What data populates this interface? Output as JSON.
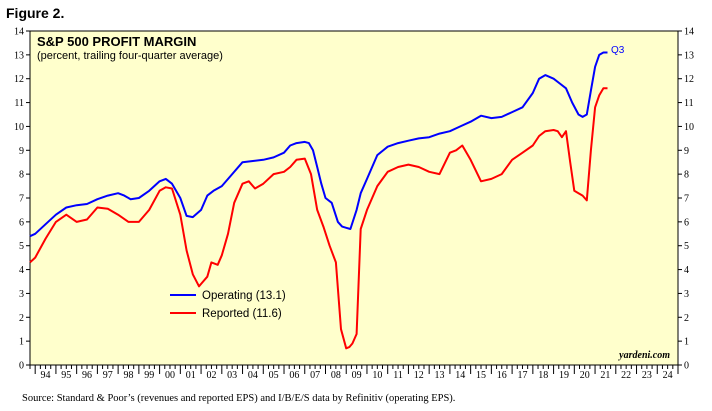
{
  "figure_label": "Figure 2.",
  "source_note": "Source: Standard & Poor’s (revenues and reported EPS) and I/B/E/S data by Refinitiv (operating EPS).",
  "chart_data": {
    "type": "line",
    "title": "S&P 500 PROFIT MARGIN",
    "subtitle": "(percent, trailing four-quarter average)",
    "credit": "yardeni.com",
    "annotation": "Q3",
    "background": "#ffffcc",
    "ylim": [
      0,
      14
    ],
    "yticks": [
      "0",
      "1",
      "2",
      "3",
      "4",
      "5",
      "6",
      "7",
      "8",
      "9",
      "10",
      "11",
      "12",
      "13",
      "14"
    ],
    "xlim": [
      1993.75,
      2025.0
    ],
    "xticks": [
      "94",
      "95",
      "96",
      "97",
      "98",
      "99",
      "00",
      "01",
      "02",
      "03",
      "04",
      "05",
      "06",
      "07",
      "08",
      "09",
      "10",
      "11",
      "12",
      "13",
      "14",
      "15",
      "16",
      "17",
      "18",
      "19",
      "20",
      "21",
      "22",
      "23",
      "24"
    ],
    "legend_position": "center-left",
    "series": [
      {
        "name": "Operating (13.1)",
        "color": "#0000ff",
        "x": [
          1993.75,
          1994.0,
          1994.5,
          1995.0,
          1995.5,
          1996.0,
          1996.5,
          1997.0,
          1997.5,
          1998.0,
          1998.3,
          1998.6,
          1999.0,
          1999.5,
          2000.0,
          2000.3,
          2000.6,
          2001.0,
          2001.3,
          2001.6,
          2002.0,
          2002.3,
          2002.6,
          2003.0,
          2003.5,
          2004.0,
          2004.5,
          2005.0,
          2005.5,
          2006.0,
          2006.3,
          2006.6,
          2007.0,
          2007.2,
          2007.4,
          2007.6,
          2007.8,
          2008.0,
          2008.3,
          2008.6,
          2008.8,
          2009.0,
          2009.2,
          2009.5,
          2009.7,
          2010.0,
          2010.5,
          2011.0,
          2011.5,
          2012.0,
          2012.5,
          2013.0,
          2013.5,
          2014.0,
          2014.5,
          2015.0,
          2015.5,
          2016.0,
          2016.5,
          2017.0,
          2017.5,
          2018.0,
          2018.3,
          2018.6,
          2019.0,
          2019.3,
          2019.6,
          2019.9,
          2020.2,
          2020.4,
          2020.6,
          2020.8,
          2021.0,
          2021.2,
          2021.4,
          2021.6
        ],
        "values": [
          5.4,
          5.5,
          5.9,
          6.3,
          6.6,
          6.7,
          6.75,
          6.95,
          7.1,
          7.2,
          7.1,
          6.95,
          7.0,
          7.3,
          7.7,
          7.8,
          7.6,
          7.0,
          6.25,
          6.2,
          6.5,
          7.1,
          7.3,
          7.5,
          8.0,
          8.5,
          8.55,
          8.6,
          8.7,
          8.9,
          9.2,
          9.3,
          9.35,
          9.3,
          9.0,
          8.3,
          7.6,
          7.0,
          6.8,
          6.0,
          5.8,
          5.75,
          5.7,
          6.5,
          7.2,
          7.8,
          8.8,
          9.15,
          9.3,
          9.4,
          9.5,
          9.55,
          9.7,
          9.8,
          10.0,
          10.2,
          10.45,
          10.35,
          10.4,
          10.6,
          10.8,
          11.4,
          12.0,
          12.15,
          12.0,
          11.8,
          11.6,
          11.0,
          10.5,
          10.4,
          10.5,
          11.5,
          12.5,
          13.0,
          13.1,
          13.1
        ]
      },
      {
        "name": "Reported (11.6)",
        "color": "#ff0000",
        "x": [
          1993.75,
          1994.0,
          1994.5,
          1995.0,
          1995.5,
          1996.0,
          1996.5,
          1997.0,
          1997.5,
          1998.0,
          1998.5,
          1999.0,
          1999.5,
          2000.0,
          2000.3,
          2000.6,
          2001.0,
          2001.3,
          2001.6,
          2001.9,
          2002.0,
          2002.3,
          2002.5,
          2002.8,
          2003.0,
          2003.3,
          2003.6,
          2004.0,
          2004.3,
          2004.6,
          2005.0,
          2005.5,
          2006.0,
          2006.3,
          2006.6,
          2007.0,
          2007.3,
          2007.6,
          2007.9,
          2008.2,
          2008.5,
          2008.75,
          2009.0,
          2009.15,
          2009.3,
          2009.5,
          2009.7,
          2010.0,
          2010.5,
          2011.0,
          2011.5,
          2012.0,
          2012.5,
          2013.0,
          2013.5,
          2014.0,
          2014.3,
          2014.6,
          2015.0,
          2015.5,
          2016.0,
          2016.5,
          2017.0,
          2017.5,
          2018.0,
          2018.3,
          2018.6,
          2019.0,
          2019.2,
          2019.4,
          2019.6,
          2019.8,
          2020.0,
          2020.2,
          2020.4,
          2020.6,
          2020.8,
          2021.0,
          2021.2,
          2021.4,
          2021.6
        ],
        "values": [
          4.3,
          4.5,
          5.3,
          6.0,
          6.3,
          6.0,
          6.1,
          6.6,
          6.55,
          6.3,
          6.0,
          6.0,
          6.5,
          7.3,
          7.45,
          7.4,
          6.3,
          4.8,
          3.8,
          3.3,
          3.4,
          3.7,
          4.3,
          4.2,
          4.6,
          5.5,
          6.8,
          7.6,
          7.7,
          7.4,
          7.6,
          8.0,
          8.1,
          8.3,
          8.6,
          8.65,
          8.0,
          6.5,
          5.8,
          5.0,
          4.3,
          1.5,
          0.7,
          0.75,
          0.9,
          1.3,
          5.7,
          6.5,
          7.5,
          8.1,
          8.3,
          8.4,
          8.3,
          8.1,
          8.0,
          8.9,
          9.0,
          9.2,
          8.6,
          7.7,
          7.8,
          8.0,
          8.6,
          8.9,
          9.2,
          9.6,
          9.8,
          9.85,
          9.8,
          9.55,
          9.8,
          8.5,
          7.3,
          7.2,
          7.1,
          6.9,
          9.0,
          10.8,
          11.3,
          11.6,
          11.6
        ]
      }
    ]
  }
}
